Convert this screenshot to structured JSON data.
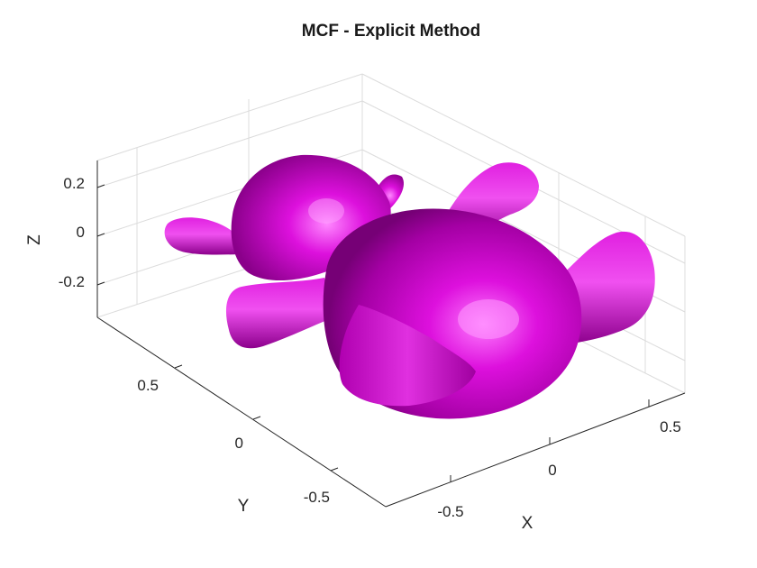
{
  "chart_data": {
    "type": "3d-surface",
    "title": "MCF - Explicit Method",
    "xlabel": "X",
    "ylabel": "Y",
    "zlabel": "Z",
    "x_ticks": [
      -0.5,
      0,
      0.5
    ],
    "y_ticks": [
      -0.5,
      0,
      0.5
    ],
    "z_ticks": [
      -0.2,
      0,
      0.2
    ],
    "x_tick_labels": [
      "-0.5",
      "0",
      "0.5"
    ],
    "y_tick_labels": [
      "-0.5",
      "0",
      "0.5"
    ],
    "z_tick_labels": [
      "-0.2",
      "0",
      "0.2"
    ],
    "grid": true,
    "surface_color": "#cc00cc",
    "surface_highlight": "#ff66ff",
    "surface_shadow": "#6e006e"
  }
}
